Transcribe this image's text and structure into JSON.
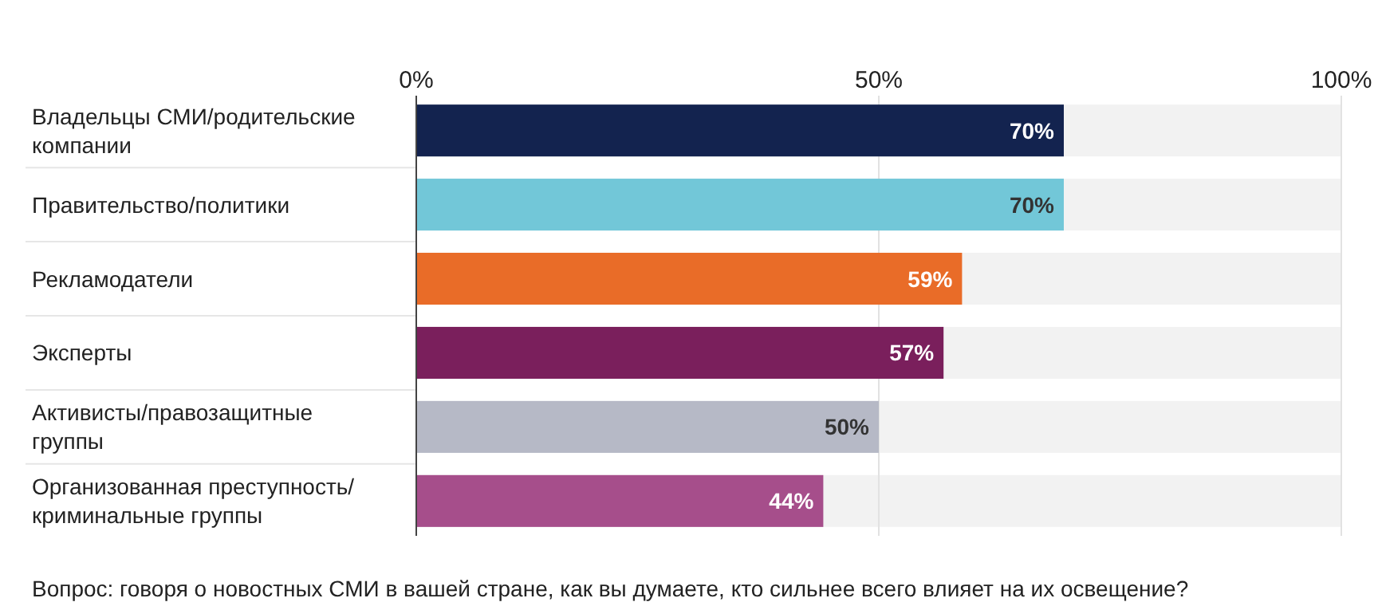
{
  "chart_data": {
    "type": "bar",
    "orientation": "horizontal",
    "categories": [
      "Владельцы СМИ/родительские компании",
      "Правительство/политики",
      "Рекламодатели",
      "Эксперты",
      "Активисты/правозащитные группы",
      "Организованная преступность/ криминальные группы"
    ],
    "values": [
      70,
      70,
      59,
      57,
      50,
      44
    ],
    "colors": [
      "#13234f",
      "#72c7d8",
      "#e96c28",
      "#7a1f5c",
      "#b6b9c6",
      "#a64e8b"
    ],
    "value_labels": [
      "70%",
      "70%",
      "59%",
      "57%",
      "50%",
      "44%"
    ],
    "xlim": [
      0,
      100
    ],
    "xticks": [
      {
        "value": 0,
        "label": "0%"
      },
      {
        "value": 50,
        "label": "50%"
      },
      {
        "value": 100,
        "label": "100%"
      }
    ],
    "grid": "x",
    "annotations": [
      "Вопрос: говоря о новостных СМИ в вашей стране, как вы думаете, кто сильнее всего влияет на их освещение?"
    ]
  }
}
